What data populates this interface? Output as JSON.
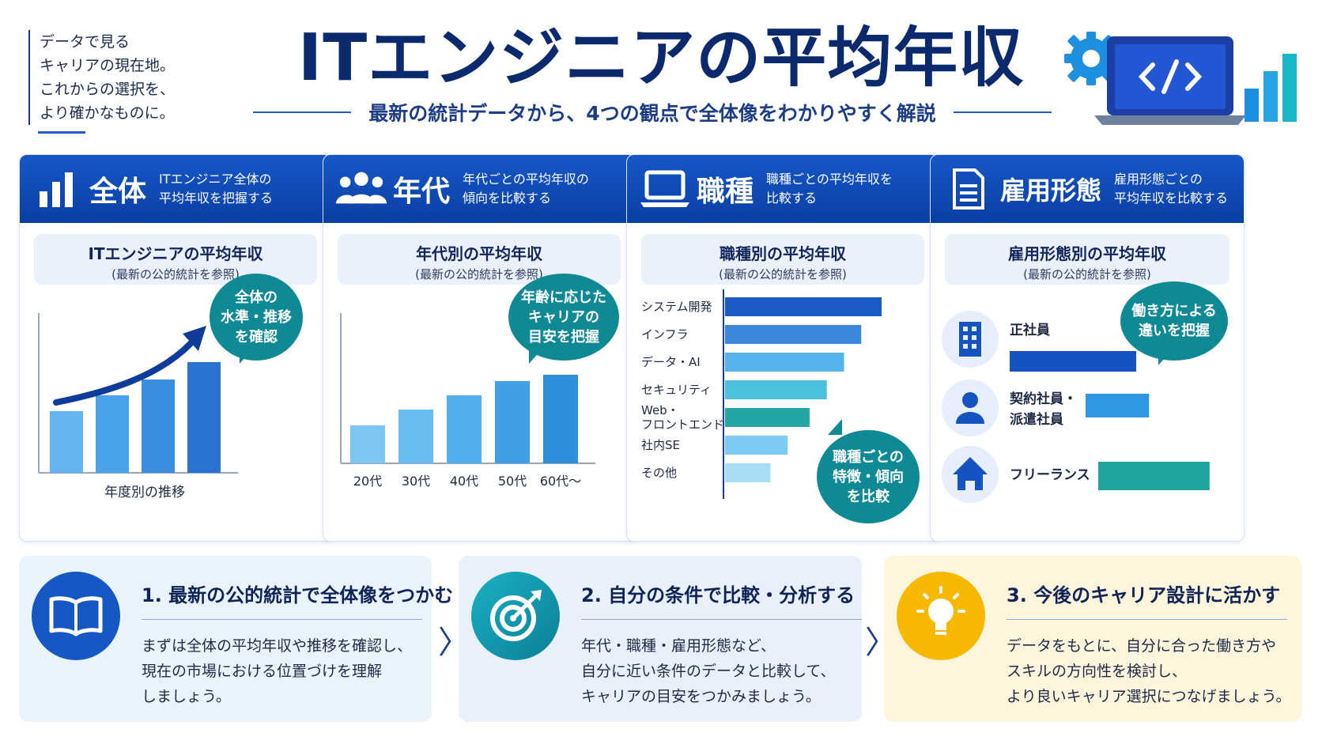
{
  "header": {
    "tagline": [
      "データで見る",
      "キャリアの現在地。",
      "これからの選択を、",
      "より確かなものに。"
    ],
    "title": "ITエンジニアの平均年収",
    "subtitle": "最新の統計データから、4つの観点で全体像をわかりやすく解説"
  },
  "colors": {
    "navy": "#0b2a6e",
    "blue": "#1657c8",
    "teal": "#0f8a94",
    "yellow": "#f6b800"
  },
  "cards": [
    {
      "title": "全体",
      "desc": [
        "ITエンジニア全体の",
        "平均年収を把握する"
      ],
      "icon": "bar-chart-icon",
      "sub_title": "ITエンジニアの平均年収",
      "sub_note": "(最新の公的統計を参照)",
      "bubble": [
        "全体の",
        "水準・推移",
        "を確認"
      ],
      "caption": "年度別の推移"
    },
    {
      "title": "年代",
      "desc": [
        "年代ごとの平均年収の",
        "傾向を比較する"
      ],
      "icon": "people-icon",
      "sub_title": "年代別の平均年収",
      "sub_note": "(最新の公的統計を参照)",
      "bubble": [
        "年齢に応じた",
        "キャリアの",
        "目安を把握"
      ]
    },
    {
      "title": "職種",
      "desc": [
        "職種ごとの平均年収を",
        "比較する"
      ],
      "icon": "laptop-icon",
      "sub_title": "職種別の平均年収",
      "sub_note": "(最新の公的統計を参照)",
      "bubble": [
        "職種ごとの",
        "特徴・傾向",
        "を比較"
      ]
    },
    {
      "title": "雇用形態",
      "desc": [
        "雇用形態ごとの",
        "平均年収を比較する"
      ],
      "icon": "document-icon",
      "sub_title": "雇用形態別の平均年収",
      "sub_note": "(最新の公的統計を参照)",
      "bubble": [
        "働き方による",
        "違いを把握"
      ]
    }
  ],
  "chart_data": [
    {
      "type": "bar",
      "categories": [
        "",
        "",
        "",
        ""
      ],
      "values": [
        39,
        49,
        59,
        70
      ],
      "ylim": [
        0,
        100
      ],
      "xlabel": "年度別の推移",
      "trend_arrow": true,
      "colors": [
        "#63b4ef",
        "#4aa2e8",
        "#3a8ddf",
        "#2a73d1"
      ]
    },
    {
      "type": "bar",
      "categories": [
        "20代",
        "30代",
        "40代",
        "50代",
        "60代〜"
      ],
      "values": [
        24,
        34,
        43,
        52,
        56
      ],
      "ylim": [
        0,
        100
      ],
      "colors": [
        "#7cc6f2",
        "#68bcef",
        "#52afeb",
        "#3f9fe3",
        "#2d8fdc"
      ]
    },
    {
      "type": "bar",
      "orientation": "horizontal",
      "categories": [
        "システム開発",
        "インフラ",
        "データ・AI",
        "セキュリティ",
        "Web・\nフロントエンド",
        "社内SE",
        "その他"
      ],
      "values": [
        100,
        87,
        76,
        65,
        54,
        40,
        29
      ],
      "xlim": [
        0,
        100
      ],
      "colors": [
        "#1a5bc6",
        "#3b88dd",
        "#56b4ec",
        "#4bc1dd",
        "#24a6a4",
        "#7ccbf2",
        "#a9dcf7"
      ]
    },
    {
      "type": "bar",
      "orientation": "horizontal",
      "categories": [
        "正社員",
        "契約社員・\n派遣社員",
        "フリーランス"
      ],
      "values": [
        100,
        57,
        88
      ],
      "xlim": [
        0,
        100
      ],
      "colors": [
        "#1553c1",
        "#2f98e4",
        "#1fa59d"
      ],
      "icons": [
        "building-icon",
        "person-icon",
        "house-icon"
      ]
    }
  ],
  "steps": [
    {
      "title": "1. 最新の公的統計で全体像をつかむ",
      "body": [
        "まずは全体の平均年収や推移を確認し、",
        "現在の市場における位置づけを理解",
        "しましょう。"
      ],
      "icon": "book-icon"
    },
    {
      "title": "2. 自分の条件で比較・分析する",
      "body": [
        "年代・職種・雇用形態など、",
        "自分に近い条件のデータと比較して、",
        "キャリアの目安をつかみましょう。"
      ],
      "icon": "target-icon"
    },
    {
      "title": "3. 今後のキャリア設計に活かす",
      "body": [
        "データをもとに、自分に合った働き方や",
        "スキルの方向性を検討し、",
        "より良いキャリア選択につなげましょう。"
      ],
      "icon": "lightbulb-icon"
    }
  ],
  "chevron": "〉"
}
